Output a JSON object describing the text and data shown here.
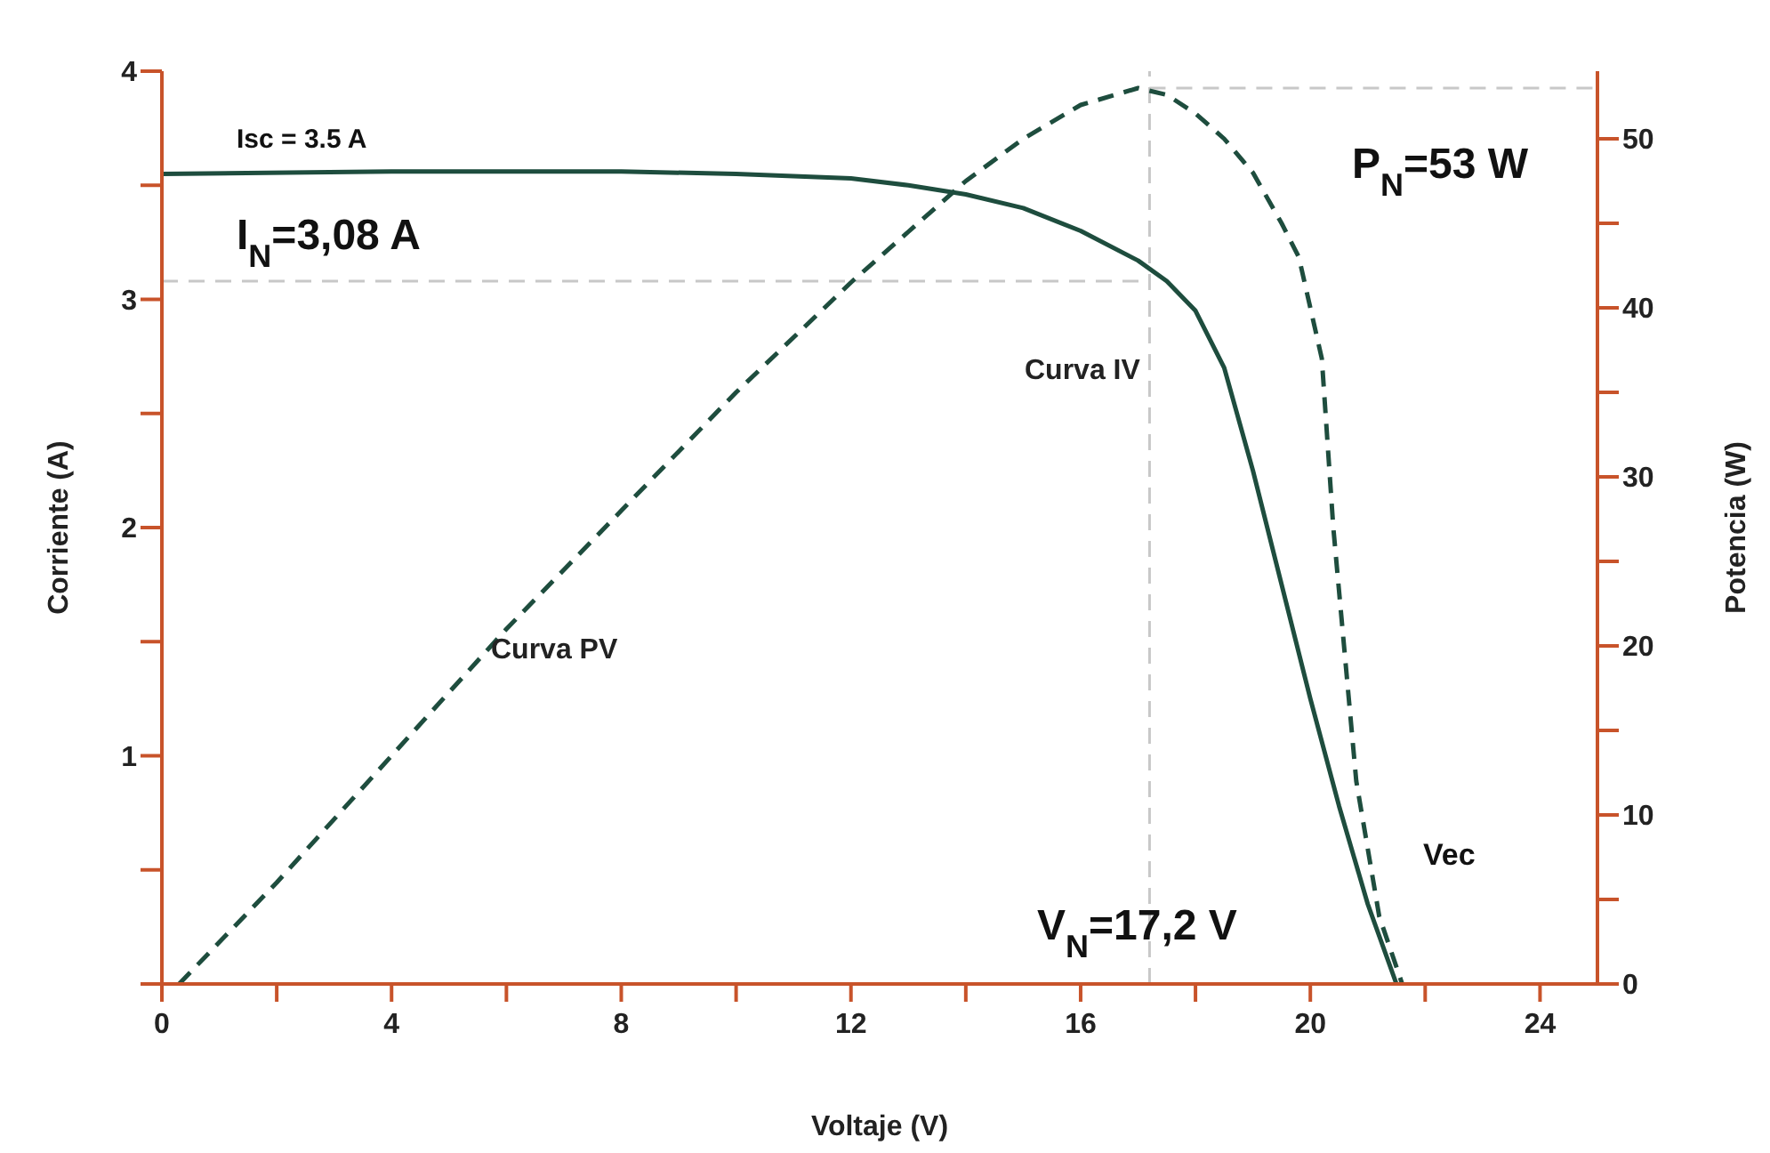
{
  "chart_data": {
    "type": "line",
    "xlabel": "Voltaje (V)",
    "ylabel": "Corriente (A)",
    "y2label": "Potencia (W)",
    "series": [
      {
        "name": "Curva IV",
        "color": "#1e4d3e",
        "line_style": "solid",
        "x": [
          0,
          4,
          8,
          10,
          12,
          13,
          14,
          15,
          16,
          17,
          17.5,
          18,
          18.5,
          19,
          19.5,
          20,
          20.5,
          21,
          21.5
        ],
        "values": [
          3.55,
          3.56,
          3.56,
          3.55,
          3.53,
          3.5,
          3.46,
          3.4,
          3.3,
          3.17,
          3.08,
          2.95,
          2.7,
          2.25,
          1.75,
          1.25,
          0.78,
          0.35,
          0
        ]
      },
      {
        "name": "Curva PV",
        "axis": "y2",
        "color": "#1e4d3e",
        "line_style": "dashed",
        "x": [
          0.3,
          2,
          4,
          6,
          8,
          10,
          12,
          13,
          14,
          15,
          16,
          17,
          17.5,
          18,
          18.5,
          19,
          19.5,
          19.8,
          20.2,
          20.4,
          20.8,
          21.2,
          21.6
        ],
        "values": [
          0,
          6,
          13.5,
          21,
          28,
          35,
          41.5,
          44.5,
          47.5,
          50,
          52,
          53,
          52.6,
          51.5,
          50,
          48,
          45,
          43,
          37,
          27,
          12,
          4,
          0
        ]
      }
    ],
    "xlim": [
      0,
      25
    ],
    "xticks": [
      0,
      {
        "value": 2,
        "label": null
      },
      4,
      {
        "value": 6,
        "label": null
      },
      8,
      {
        "value": 10,
        "label": null
      },
      12,
      {
        "value": 14,
        "label": null
      },
      16,
      {
        "value": 18,
        "label": null
      },
      20,
      {
        "value": 22,
        "label": null
      },
      24
    ],
    "ylim": [
      0,
      4
    ],
    "yticks": [
      {
        "value": 0,
        "label": null
      },
      {
        "value": 0.5,
        "label": null
      },
      1,
      {
        "value": 1.5,
        "label": null
      },
      2,
      {
        "value": 2.5,
        "label": null
      },
      3,
      {
        "value": 3.5,
        "label": null
      },
      4
    ],
    "y2lim": [
      0,
      54
    ],
    "y2ticks": [
      0,
      {
        "value": 5,
        "label": null
      },
      10,
      {
        "value": 15,
        "label": null
      },
      20,
      {
        "value": 25,
        "label": null
      },
      30,
      {
        "value": 35,
        "label": null
      },
      40,
      {
        "value": 45,
        "label": null
      },
      50
    ],
    "ref_lines": [
      {
        "axis": "x",
        "value": 17.2,
        "color": "#c8c8c8",
        "line_style": "dashed"
      },
      {
        "axis": "y",
        "value": 3.08,
        "color": "#c8c8c8",
        "line_style": "dashed"
      },
      {
        "axis": "y2",
        "value": 53,
        "color": "#c8c8c8",
        "line_style": "dashed"
      }
    ],
    "annotations": [
      "Isc = 3.5 A",
      "I$_{N}$=3,08 A",
      "P$_{N}$=53 W",
      "V$_{N}$=17,2 V",
      "Vec"
    ],
    "marker": "none"
  }
}
